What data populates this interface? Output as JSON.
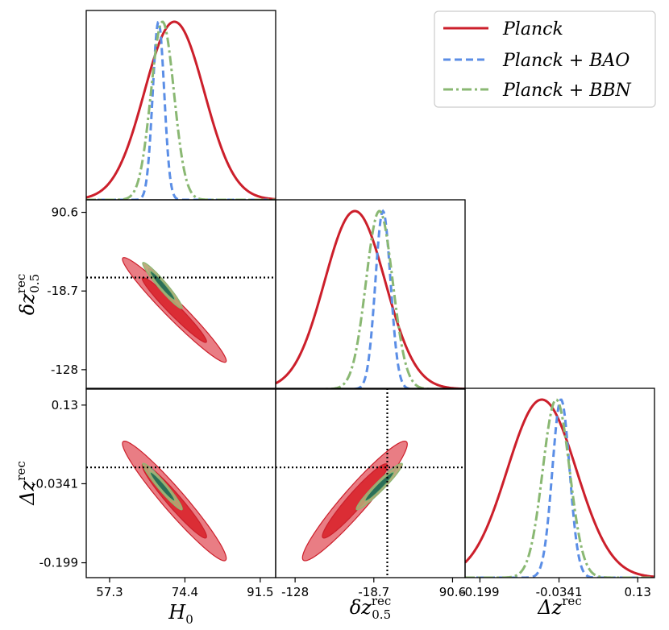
{
  "chart_data": {
    "type": "triangle-corner-plot",
    "parameters": [
      {
        "name": "H_0",
        "label_main": "H",
        "label_sub": "0",
        "label_sup": "",
        "range": [
          52.0,
          95.0
        ],
        "ticks": [
          57.3,
          74.4,
          91.5
        ],
        "tick_labels": [
          "57.3",
          "74.4",
          "91.5"
        ]
      },
      {
        "name": "delta_z_0.5_rec",
        "label_main": "δz",
        "label_sub": "0.5",
        "label_sup": "rec",
        "range": [
          -155.0,
          108.0
        ],
        "ticks": [
          -128,
          -18.7,
          90.6
        ],
        "tick_labels": [
          "-128",
          "-18.7",
          "90.6"
        ]
      },
      {
        "name": "Delta_z_rec",
        "label_main": "Δz",
        "label_sub": "",
        "label_sup": "rec",
        "range": [
          -0.23,
          0.165
        ],
        "ticks": [
          -0.199,
          -0.0341,
          0.13
        ],
        "tick_labels": [
          "-0.199",
          "-0.0341",
          "0.13"
        ]
      }
    ],
    "fiducial": {
      "delta_z_0.5_rec": 0,
      "Delta_z_rec": 0
    },
    "legend": {
      "position": "top-right"
    },
    "series": [
      {
        "name": "Planck",
        "label": "Planck",
        "color": "#cc1f2b",
        "fill_outer": "#e7727a",
        "fill_inner": "#d9262f",
        "dash": "solid",
        "means": [
          72.0,
          -45.0,
          -0.07
        ],
        "sigmas": [
          6.8,
          42.0,
          0.072
        ],
        "corr": {
          "H0_dz": -0.97,
          "H0_Dz": -0.96,
          "dz_Dz": 0.95
        }
      },
      {
        "name": "Planck + BAO",
        "label": "Planck + BAO",
        "color": "#5b8ee6",
        "fill_outer": "#a6bfe3",
        "fill_inner": "#4f7fc8",
        "dash": "dashed",
        "means": [
          68.4,
          -6.0,
          -0.03
        ],
        "sigmas": [
          1.3,
          10.5,
          0.018
        ],
        "corr": {
          "H0_dz": -0.95,
          "H0_Dz": -0.95,
          "dz_Dz": 0.95
        }
      },
      {
        "name": "Planck + BBN",
        "label": "Planck + BBN",
        "color": "#8ab873",
        "fill_outer": "#b7a472",
        "fill_inner": "#1f6a55",
        "dash": "dashdot",
        "means": [
          69.3,
          -11.0,
          -0.04
        ],
        "sigmas": [
          2.6,
          18.5,
          0.028
        ],
        "corr": {
          "H0_dz": -0.96,
          "H0_Dz": -0.96,
          "dz_Dz": 0.96
        }
      }
    ]
  }
}
